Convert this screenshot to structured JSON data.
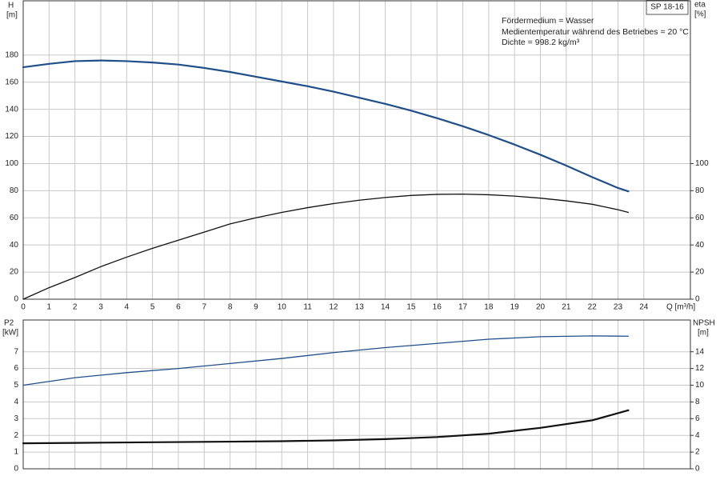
{
  "chart_data": [
    {
      "type": "line",
      "title": "SP 18-16",
      "annotations": [
        "Fördermedium = Wasser",
        "Medientemperatur während des Betriebes = 20 °C",
        "Dichte = 998.2 kg/m³"
      ],
      "ylabel": "H",
      "yunit": "[m]",
      "y2label": "eta",
      "y2unit": "[%]",
      "xlabel": "Q [m³/h]",
      "xlim": [
        0,
        25.8
      ],
      "xticks": [
        0,
        1,
        2,
        3,
        4,
        5,
        6,
        7,
        8,
        9,
        10,
        11,
        12,
        13,
        14,
        15,
        16,
        17,
        18,
        19,
        20,
        21,
        22,
        23,
        24
      ],
      "ylim": [
        0,
        220
      ],
      "yticks": [
        0,
        20,
        40,
        60,
        80,
        100,
        120,
        140,
        160,
        180
      ],
      "y2lim": [
        0,
        220
      ],
      "y2ticks": [
        0,
        20,
        40,
        60,
        80,
        100
      ],
      "grid": true,
      "series": [
        {
          "name": "H",
          "color": "#1e4f8a",
          "x": [
            0,
            1,
            2,
            3,
            4,
            5,
            6,
            7,
            8,
            9,
            10,
            11,
            12,
            13,
            14,
            15,
            16,
            17,
            18,
            19,
            20,
            21,
            22,
            23,
            23.4
          ],
          "values": [
            171,
            173.5,
            175.5,
            176,
            175.5,
            174.5,
            173,
            170.5,
            167.5,
            164,
            160.5,
            157,
            153,
            148.5,
            144,
            139,
            133.5,
            127.5,
            121,
            114,
            106.5,
            98.5,
            90,
            82,
            79.5
          ]
        },
        {
          "name": "eta",
          "color": "#111111",
          "axis": "y2",
          "x": [
            0,
            1,
            2,
            3,
            4,
            5,
            6,
            7,
            8,
            9,
            10,
            11,
            12,
            13,
            14,
            15,
            16,
            17,
            18,
            19,
            20,
            21,
            22,
            23,
            23.4
          ],
          "values": [
            0,
            8.5,
            16,
            24,
            31,
            37.5,
            43.5,
            49.5,
            55.5,
            60,
            64,
            67.5,
            70.5,
            73,
            75,
            76.5,
            77.3,
            77.5,
            77,
            76,
            74.5,
            72.5,
            70,
            66,
            64
          ]
        }
      ]
    },
    {
      "type": "line",
      "ylabel": "P2",
      "yunit": "[kW]",
      "y2label": "NPSH",
      "y2unit": "[m]",
      "xlim": [
        0,
        25.8
      ],
      "xticks": [
        0,
        1,
        2,
        3,
        4,
        5,
        6,
        7,
        8,
        9,
        10,
        11,
        12,
        13,
        14,
        15,
        16,
        17,
        18,
        19,
        20,
        21,
        22,
        23,
        24
      ],
      "ylim": [
        0,
        8.9
      ],
      "yticks": [
        0,
        1,
        2,
        3,
        4,
        5,
        6,
        7
      ],
      "y2lim": [
        0,
        17.8
      ],
      "y2ticks": [
        0,
        2,
        4,
        6,
        8,
        10,
        12,
        14
      ],
      "grid": true,
      "series": [
        {
          "name": "P2",
          "color": "#1e4f8a",
          "x": [
            0,
            2,
            4,
            6,
            8,
            10,
            12,
            14,
            16,
            18,
            20,
            22,
            23.4
          ],
          "values": [
            5.0,
            5.45,
            5.75,
            6.0,
            6.3,
            6.6,
            6.95,
            7.25,
            7.5,
            7.75,
            7.9,
            7.95,
            7.93
          ]
        },
        {
          "name": "NPSH",
          "color": "#111111",
          "axis": "y2",
          "x": [
            0,
            2,
            4,
            6,
            8,
            10,
            12,
            14,
            16,
            18,
            20,
            22,
            23.4
          ],
          "values": [
            3.05,
            3.1,
            3.15,
            3.2,
            3.25,
            3.3,
            3.4,
            3.55,
            3.8,
            4.2,
            4.9,
            5.8,
            7.0
          ]
        }
      ]
    }
  ]
}
